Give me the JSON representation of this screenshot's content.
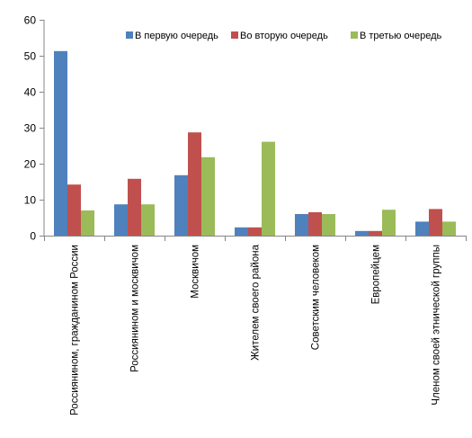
{
  "chart_data": {
    "type": "bar",
    "title": "",
    "xlabel": "",
    "ylabel": "",
    "ylim": [
      0,
      60
    ],
    "yticks": [
      0,
      10,
      20,
      30,
      40,
      50,
      60
    ],
    "grid": false,
    "legend": "top-right",
    "categories": [
      "Россиянином, гражданином России",
      "Россиянином и москвичом",
      "Москвичом",
      "Жителем своего района",
      "Советским человеком",
      "Европейцем",
      "Членом своей этнической группы"
    ],
    "series": [
      {
        "name": "В первую очередь",
        "color": "#4f81bd",
        "values": [
          51.3,
          8.7,
          16.8,
          2.3,
          6.0,
          1.3,
          3.9
        ]
      },
      {
        "name": "Во вторую очередь",
        "color": "#c0504d",
        "values": [
          14.2,
          15.8,
          28.7,
          2.3,
          6.5,
          1.3,
          7.4
        ]
      },
      {
        "name": "В третью очередь",
        "color": "#9bbb59",
        "values": [
          7.0,
          8.7,
          21.8,
          26.1,
          6.0,
          7.2,
          3.9
        ]
      }
    ]
  }
}
